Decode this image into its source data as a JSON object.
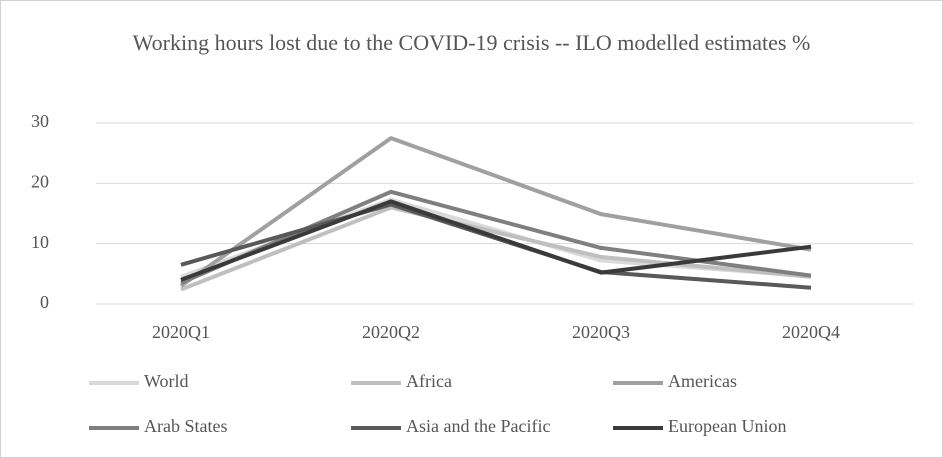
{
  "chart_data": {
    "type": "line",
    "title": "Working hours lost due to the COVID-19 crisis -- ILO modelled estimates %",
    "categories": [
      "2020Q1",
      "2020Q2",
      "2020Q3",
      "2020Q4"
    ],
    "series": [
      {
        "name": "World",
        "color": "#d9d9d9",
        "values": [
          4.5,
          17.3,
          7.2,
          4.6
        ]
      },
      {
        "name": "Africa",
        "color": "#bfbfbf",
        "values": [
          2.4,
          16.0,
          7.8,
          4.5
        ]
      },
      {
        "name": "Americas",
        "color": "#a0a0a0",
        "values": [
          3.0,
          27.5,
          14.9,
          9.0
        ]
      },
      {
        "name": "Arab States",
        "color": "#7f7f7f",
        "values": [
          3.5,
          18.6,
          9.3,
          4.7
        ]
      },
      {
        "name": "Asia and the Pacific",
        "color": "#595959",
        "values": [
          6.5,
          16.5,
          5.3,
          2.7
        ]
      },
      {
        "name": "European Union",
        "color": "#3a3a3a",
        "values": [
          4.0,
          17.0,
          5.2,
          9.5
        ]
      }
    ],
    "ylim": [
      0,
      30
    ],
    "yticks": [
      0,
      10,
      20,
      30
    ],
    "grid": true,
    "legend": "bottom"
  }
}
